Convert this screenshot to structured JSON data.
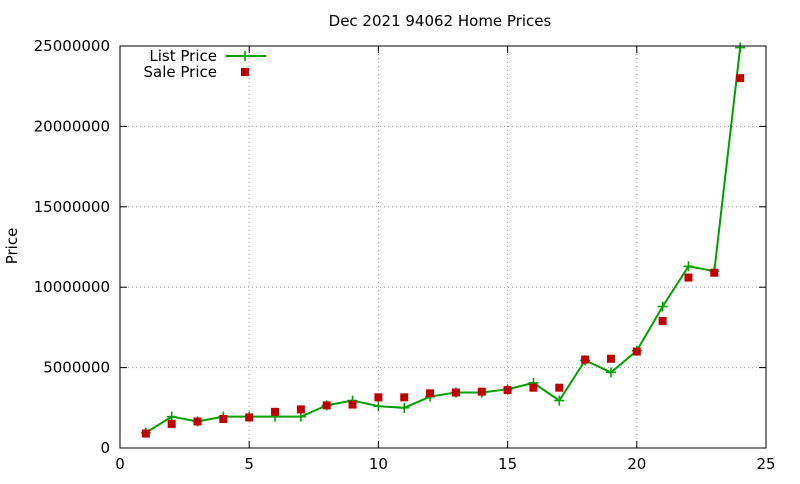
{
  "chart_data": {
    "type": "line",
    "title": "Dec 2021 94062 Home Prices",
    "xlabel": "",
    "ylabel": "Price",
    "xlim": [
      0,
      25
    ],
    "ylim": [
      0,
      25000000
    ],
    "x_ticks": [
      0,
      5,
      10,
      15,
      20,
      25
    ],
    "y_ticks": [
      0,
      5000000,
      10000000,
      15000000,
      20000000,
      25000000
    ],
    "x_tick_labels": [
      "0",
      "5",
      "10",
      "15",
      "20",
      "25"
    ],
    "y_tick_labels": [
      "0",
      "5000000",
      "10000000",
      "15000000",
      "20000000",
      "25000000"
    ],
    "grid": true,
    "legend_position": "top-left",
    "series": [
      {
        "name": "List Price",
        "style": "line-with-plus-markers",
        "color": "#00a000",
        "x": [
          1,
          2,
          3,
          4,
          5,
          6,
          7,
          8,
          9,
          10,
          11,
          12,
          13,
          14,
          15,
          16,
          17,
          18,
          19,
          20,
          21,
          22,
          23,
          24
        ],
        "values": [
          950000,
          1950000,
          1650000,
          1950000,
          1950000,
          1950000,
          1950000,
          2650000,
          2950000,
          2600000,
          2500000,
          3200000,
          3450000,
          3450000,
          3650000,
          4050000,
          2950000,
          5450000,
          4700000,
          6050000,
          8800000,
          11300000,
          11000000,
          24900000
        ]
      },
      {
        "name": "Sale Price",
        "style": "square-markers",
        "color": "#c00000",
        "x": [
          1,
          2,
          3,
          4,
          5,
          6,
          7,
          8,
          9,
          10,
          11,
          12,
          13,
          14,
          15,
          16,
          17,
          18,
          19,
          20,
          21,
          22,
          23,
          24
        ],
        "values": [
          900000,
          1500000,
          1650000,
          1800000,
          1900000,
          2250000,
          2400000,
          2650000,
          2700000,
          3150000,
          3150000,
          3400000,
          3450000,
          3500000,
          3600000,
          3750000,
          3750000,
          5500000,
          5550000,
          6000000,
          7900000,
          10600000,
          10900000,
          23000000
        ]
      }
    ]
  }
}
